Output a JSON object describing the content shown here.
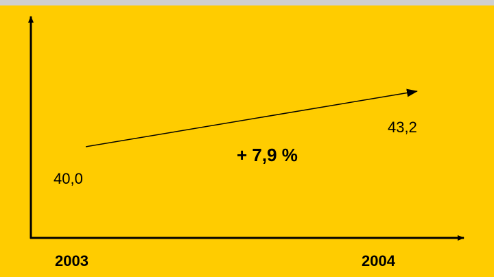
{
  "chart_data": {
    "type": "line",
    "categories": [
      "2003",
      "2004"
    ],
    "values": [
      40.0,
      43.2
    ],
    "value_labels": [
      "40,0",
      "43,2"
    ],
    "annotation": "+ 7,9 %",
    "color": "#000000"
  }
}
